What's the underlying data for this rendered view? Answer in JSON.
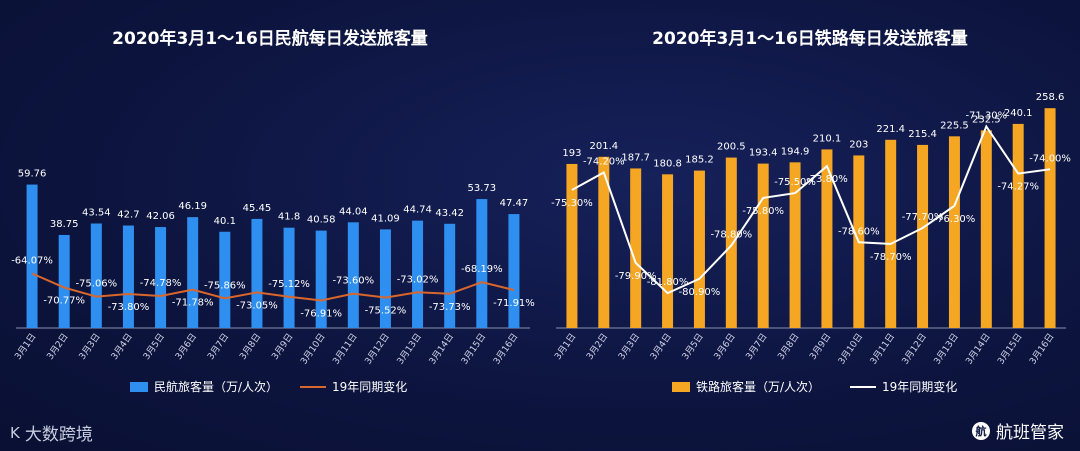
{
  "chart_data": [
    {
      "type": "bar",
      "title": "2020年3月1～16日民航每日发送旅客量",
      "categories": [
        "3月1日",
        "3月2日",
        "3月3日",
        "3月4日",
        "3月5日",
        "3月6日",
        "3月7日",
        "3月8日",
        "3月9日",
        "3月10日",
        "3月11日",
        "3月12日",
        "3月13日",
        "3月14日",
        "3月15日",
        "3月16日"
      ],
      "series": [
        {
          "name": "民航旅客量（万/人次）",
          "type": "bar",
          "color": "#2f8ff0",
          "values": [
            59.76,
            38.75,
            43.54,
            42.7,
            42.06,
            46.19,
            40.1,
            45.45,
            41.8,
            40.58,
            44.04,
            41.09,
            44.74,
            43.42,
            53.73,
            47.47
          ],
          "labels": [
            "59.76",
            "38.75",
            "43.54",
            "42.7",
            "42.06",
            "46.19",
            "40.1",
            "45.45",
            "41.8",
            "40.58",
            "44.04",
            "41.09",
            "44.74",
            "43.42",
            "53.73",
            "47.47"
          ]
        },
        {
          "name": "19年同期变化",
          "type": "line",
          "color": "#d9662b",
          "values": [
            -64.07,
            -70.77,
            -75.06,
            -73.8,
            -74.78,
            -71.78,
            -75.86,
            -73.05,
            -75.12,
            -76.91,
            -73.6,
            -75.52,
            -73.02,
            -73.73,
            -68.19,
            -71.91
          ],
          "labels": [
            "-64.07%",
            "-70.77%",
            "-75.06%",
            "-73.80%",
            "-74.78%",
            "-71.78%",
            "-75.86%",
            "-73.05%",
            "-75.12%",
            "-76.91%",
            "-73.60%",
            "-75.52%",
            "-73.02%",
            "-73.73%",
            "-68.19%",
            "-71.91%"
          ]
        }
      ],
      "bar_ylim": [
        0,
        70
      ],
      "line_ylim": [
        -90,
        -10
      ]
    },
    {
      "type": "bar",
      "title": "2020年3月1～16日铁路每日发送旅客量",
      "categories": [
        "3月1日",
        "3月2日",
        "3月3日",
        "3月4日",
        "3月5日",
        "3月6日",
        "3月7日",
        "3月8日",
        "3月9日",
        "3月10日",
        "3月11日",
        "3月12日",
        "3月13日",
        "3月14日",
        "3月15日",
        "3月16日"
      ],
      "series": [
        {
          "name": "铁路旅客量（万/人次）",
          "type": "bar",
          "color": "#f5a623",
          "values": [
            193,
            201.4,
            187.7,
            180.8,
            185.2,
            200.5,
            193.4,
            194.9,
            210.1,
            203,
            221.4,
            215.4,
            225.5,
            232.5,
            240.1,
            258.6
          ],
          "labels": [
            "193",
            "201.4",
            "187.7",
            "180.8",
            "185.2",
            "200.5",
            "193.4",
            "194.9",
            "210.1",
            "203",
            "221.4",
            "215.4",
            "225.5",
            "232.5",
            "240.1",
            "258.6"
          ]
        },
        {
          "name": "19年同期变化",
          "type": "line",
          "color": "#ffffff",
          "values": [
            -75.3,
            -74.2,
            -79.9,
            -81.8,
            -80.9,
            -78.8,
            -75.8,
            -75.5,
            -73.8,
            -78.6,
            -78.7,
            -77.7,
            -76.3,
            -71.3,
            -74.27,
            -74.0
          ],
          "labels": [
            "-75.30%",
            "-74.20%",
            "-79.90%",
            "-81.80%",
            "-80.90%",
            "-78.80%",
            "-75.80%",
            "-75.50%",
            "-73.80%",
            "-78.60%",
            "-78.70%",
            "-77.70%",
            "-76.30%",
            "-71.30%",
            "-74.27%",
            "-74.00%"
          ]
        }
      ],
      "bar_ylim": [
        0,
        280
      ],
      "line_ylim": [
        -84,
        -69
      ]
    }
  ],
  "footer": {
    "left_logo": "K",
    "left_text": "大数跨境",
    "right_logo": "航",
    "right_text": "航班管家"
  }
}
